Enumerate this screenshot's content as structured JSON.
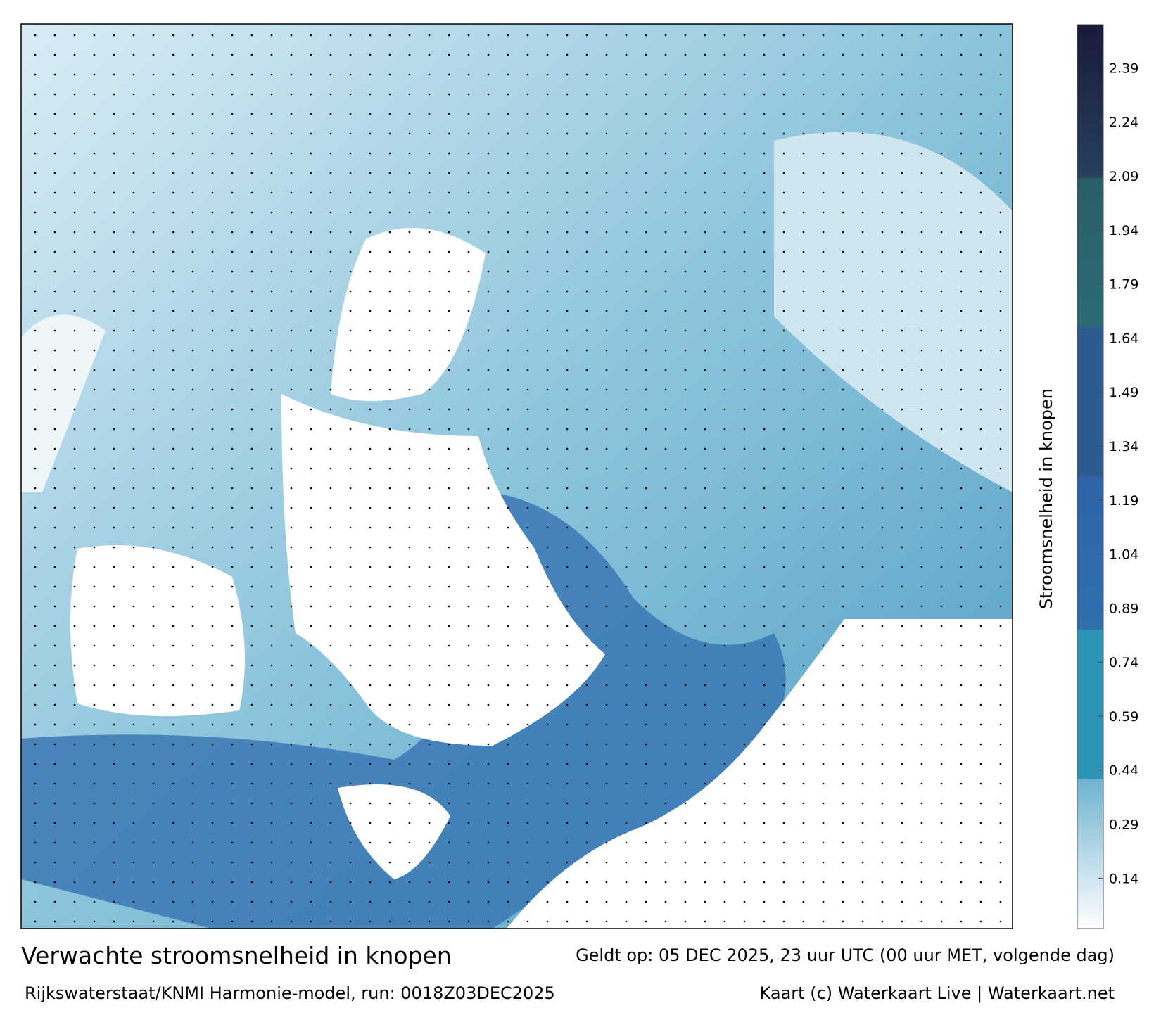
{
  "header": {
    "title": "Verwachte stroomsnelheid in knopen",
    "valid": "Geldt op: 05 DEC 2025, 23 uur UTC (00 uur MET, volgende dag)",
    "source": "Rijkswaterstaat/KNMI Harmonie-model, run: 0018Z03DEC2025",
    "credit": "Kaart (c) Waterkaart Live | Waterkaart.net"
  },
  "colorbar": {
    "label": "Stroomsnelheid in knopen",
    "lim": [
      0,
      2.51
    ],
    "ticks": [
      0.14,
      0.29,
      0.44,
      0.59,
      0.74,
      0.89,
      1.04,
      1.19,
      1.34,
      1.49,
      1.64,
      1.79,
      1.94,
      2.09,
      2.24,
      2.39
    ]
  }
}
